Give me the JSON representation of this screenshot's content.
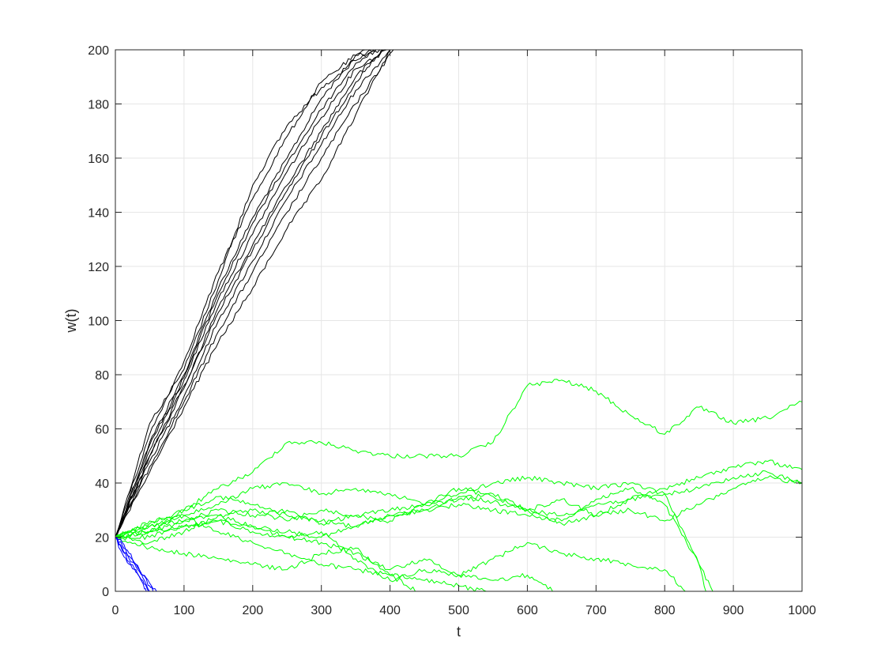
{
  "chart_data": {
    "type": "line",
    "title": "",
    "xlabel": "t",
    "ylabel": "w(t)",
    "xlim": [
      0,
      1000
    ],
    "ylim": [
      0,
      200
    ],
    "xticks": [
      0,
      100,
      200,
      300,
      400,
      500,
      600,
      700,
      800,
      900,
      1000
    ],
    "yticks": [
      0,
      20,
      40,
      60,
      80,
      100,
      120,
      140,
      160,
      180,
      200
    ],
    "grid": true,
    "legend": "none",
    "colors": {
      "black": "#000000",
      "green": "#00ff00",
      "blue": "#0000ff",
      "axis": "#262626",
      "grid": "#e6e6e6"
    },
    "series": [
      {
        "color": "#000000",
        "x": [
          0,
          50,
          100,
          150,
          200,
          250,
          300,
          350,
          380
        ],
        "y": [
          20,
          55,
          80,
          112,
          138,
          160,
          182,
          198,
          200
        ]
      },
      {
        "color": "#000000",
        "x": [
          0,
          50,
          100,
          150,
          200,
          250,
          300,
          350,
          390
        ],
        "y": [
          20,
          50,
          75,
          105,
          128,
          150,
          170,
          190,
          200
        ]
      },
      {
        "color": "#000000",
        "x": [
          0,
          50,
          100,
          150,
          200,
          250,
          300,
          350,
          400
        ],
        "y": [
          20,
          48,
          72,
          100,
          122,
          145,
          165,
          185,
          200
        ]
      },
      {
        "color": "#000000",
        "x": [
          0,
          50,
          100,
          150,
          200,
          250,
          300,
          350,
          405
        ],
        "y": [
          20,
          46,
          70,
          96,
          118,
          140,
          160,
          180,
          200
        ]
      },
      {
        "color": "#000000",
        "x": [
          0,
          50,
          100,
          150,
          200,
          250,
          300,
          350,
          370
        ],
        "y": [
          20,
          58,
          85,
          118,
          145,
          168,
          188,
          198,
          200
        ]
      },
      {
        "color": "#000000",
        "x": [
          0,
          50,
          100,
          150,
          200,
          250,
          300,
          350,
          395
        ],
        "y": [
          20,
          52,
          78,
          108,
          132,
          155,
          175,
          193,
          200
        ]
      },
      {
        "color": "#000000",
        "x": [
          0,
          50,
          100,
          150,
          200,
          250,
          300,
          350,
          385
        ],
        "y": [
          20,
          62,
          82,
          115,
          150,
          172,
          186,
          196,
          200
        ]
      },
      {
        "color": "#000000",
        "x": [
          0,
          50,
          100,
          150,
          200,
          250,
          300,
          350,
          400
        ],
        "y": [
          20,
          44,
          68,
          92,
          112,
          134,
          152,
          176,
          200
        ]
      },
      {
        "color": "#000000",
        "x": [
          0,
          50,
          100,
          150,
          200,
          250,
          300,
          350,
          390
        ],
        "y": [
          20,
          50,
          76,
          103,
          126,
          148,
          168,
          188,
          200
        ]
      },
      {
        "color": "#000000",
        "x": [
          0,
          50,
          100,
          150,
          200,
          250,
          300,
          350,
          380
        ],
        "y": [
          20,
          54,
          79,
          110,
          136,
          158,
          178,
          195,
          200
        ]
      },
      {
        "color": "#00ff00",
        "x": [
          0,
          50,
          100,
          150,
          200,
          250,
          300,
          350,
          400,
          450,
          500,
          550,
          600,
          650,
          700,
          750,
          800,
          850,
          900,
          950,
          1000
        ],
        "y": [
          20,
          22,
          30,
          38,
          44,
          55,
          55,
          52,
          50,
          50,
          50,
          55,
          76,
          78,
          74,
          65,
          58,
          68,
          62,
          64,
          70
        ]
      },
      {
        "color": "#00ff00",
        "x": [
          0,
          50,
          100,
          150,
          200,
          250,
          300,
          350,
          400,
          450,
          500,
          550,
          600,
          650,
          700,
          750,
          800,
          850,
          900,
          950,
          1000
        ],
        "y": [
          20,
          25,
          30,
          35,
          32,
          28,
          26,
          24,
          28,
          30,
          35,
          33,
          30,
          28,
          32,
          34,
          38,
          42,
          46,
          48,
          45
        ]
      },
      {
        "color": "#00ff00",
        "x": [
          0,
          50,
          100,
          150,
          200,
          250,
          300,
          350,
          400,
          450,
          500,
          550,
          600,
          650,
          700,
          750,
          800,
          850,
          900,
          950,
          1000
        ],
        "y": [
          20,
          24,
          26,
          30,
          28,
          30,
          25,
          28,
          30,
          32,
          38,
          35,
          30,
          25,
          28,
          30,
          26,
          32,
          38,
          42,
          40
        ]
      },
      {
        "color": "#00ff00",
        "x": [
          0,
          50,
          100,
          150,
          200,
          250,
          300,
          350,
          400,
          450,
          500,
          550,
          600,
          650,
          700,
          750,
          800,
          850,
          860
        ],
        "y": [
          20,
          22,
          24,
          26,
          24,
          22,
          20,
          24,
          28,
          30,
          32,
          30,
          28,
          26,
          34,
          38,
          32,
          10,
          0
        ]
      },
      {
        "color": "#00ff00",
        "x": [
          0,
          50,
          100,
          150,
          200,
          250,
          300,
          350,
          400,
          450,
          500,
          550,
          600,
          650,
          700,
          750,
          800,
          850,
          870
        ],
        "y": [
          20,
          18,
          22,
          28,
          30,
          26,
          30,
          28,
          26,
          32,
          34,
          36,
          30,
          34,
          28,
          34,
          36,
          10,
          0
        ]
      },
      {
        "color": "#00ff00",
        "x": [
          0,
          50,
          100,
          150,
          200,
          250,
          300,
          350,
          400,
          450,
          500,
          550,
          600,
          650,
          700,
          750,
          800,
          830
        ],
        "y": [
          20,
          20,
          24,
          26,
          22,
          20,
          18,
          14,
          8,
          12,
          6,
          12,
          18,
          14,
          12,
          10,
          8,
          0
        ]
      },
      {
        "color": "#00ff00",
        "x": [
          0,
          50,
          100,
          150,
          200,
          250,
          300,
          350,
          400,
          450,
          500,
          550,
          600,
          640
        ],
        "y": [
          20,
          22,
          26,
          28,
          24,
          20,
          22,
          12,
          4,
          8,
          6,
          4,
          6,
          0
        ]
      },
      {
        "color": "#00ff00",
        "x": [
          0,
          50,
          100,
          150,
          200,
          250,
          300,
          350,
          400,
          440
        ],
        "y": [
          20,
          16,
          14,
          12,
          10,
          8,
          14,
          16,
          6,
          0
        ]
      },
      {
        "color": "#00ff00",
        "x": [
          0,
          50,
          100,
          150,
          200,
          250,
          300,
          350,
          400,
          450,
          500,
          540
        ],
        "y": [
          20,
          24,
          28,
          22,
          18,
          14,
          10,
          8,
          6,
          4,
          2,
          0
        ]
      },
      {
        "color": "#00ff00",
        "x": [
          0,
          50,
          100,
          150,
          200,
          250,
          300,
          350,
          400,
          450,
          500,
          550,
          600,
          650,
          700,
          750,
          800,
          850,
          900,
          950,
          1000
        ],
        "y": [
          20,
          26,
          28,
          32,
          38,
          40,
          36,
          38,
          36,
          32,
          36,
          40,
          42,
          40,
          38,
          40,
          36,
          38,
          42,
          44,
          40
        ]
      },
      {
        "color": "#0000ff",
        "x": [
          0,
          10,
          20,
          30,
          40,
          50,
          60
        ],
        "y": [
          20,
          16,
          12,
          9,
          6,
          3,
          0
        ]
      },
      {
        "color": "#0000ff",
        "x": [
          0,
          10,
          20,
          30,
          40,
          50,
          55
        ],
        "y": [
          20,
          17,
          13,
          10,
          6,
          2,
          0
        ]
      },
      {
        "color": "#0000ff",
        "x": [
          0,
          10,
          20,
          30,
          40,
          45
        ],
        "y": [
          20,
          15,
          11,
          7,
          3,
          0
        ]
      },
      {
        "color": "#0000ff",
        "x": [
          0,
          10,
          20,
          30,
          40,
          50
        ],
        "y": [
          20,
          18,
          14,
          10,
          5,
          0
        ]
      },
      {
        "color": "#0000ff",
        "x": [
          0,
          10,
          20,
          30,
          40,
          48
        ],
        "y": [
          20,
          14,
          10,
          8,
          4,
          0
        ]
      }
    ]
  }
}
